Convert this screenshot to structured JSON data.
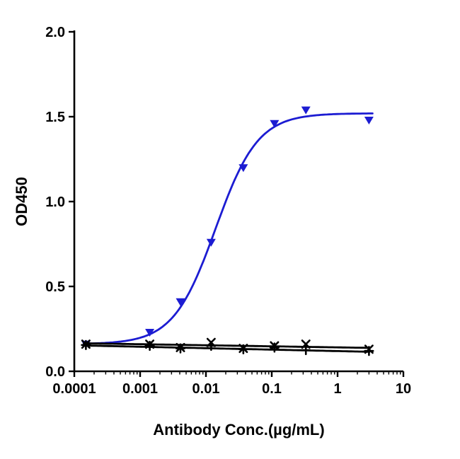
{
  "figure": {
    "background": "#ffffff"
  },
  "chart_data": {
    "type": "line",
    "title": "",
    "xlabel": "Antibody Conc.(µg/mL)",
    "ylabel": "OD450",
    "x_scale": "log",
    "xlim": [
      0.0001,
      10
    ],
    "ylim": [
      0,
      2
    ],
    "grid": false,
    "legend": "none",
    "x_ticks": {
      "values": [
        0.0001,
        0.001,
        0.01,
        0.1,
        1,
        10
      ],
      "labels": [
        "0.0001",
        "0.001",
        "0.01",
        "0.1",
        "1",
        "10"
      ]
    },
    "y_ticks": {
      "values": [
        0,
        0.5,
        1,
        1.5,
        2
      ],
      "labels": [
        "0.0",
        "0.5",
        "1.0",
        "1.5",
        "2.0"
      ]
    },
    "series": [
      {
        "name": "binding-curve",
        "color": "#1c1cd2",
        "marker": "triangle-down",
        "x": [
          0.00015,
          0.0014,
          0.0041,
          0.012,
          0.037,
          0.11,
          0.33,
          3
        ],
        "y": [
          0.16,
          0.23,
          0.41,
          0.76,
          1.2,
          1.46,
          1.54,
          1.48
        ],
        "fit": {
          "type": "4pl",
          "bottom": 0.16,
          "top": 1.52,
          "ec50": 0.014,
          "hill": 1.35,
          "domain": [
            0.00014,
            3.4
          ]
        }
      },
      {
        "name": "control-1",
        "color": "#000000",
        "marker": "x",
        "x": [
          0.00015,
          0.0014,
          0.0041,
          0.012,
          0.037,
          0.11,
          0.33,
          3
        ],
        "y": [
          0.16,
          0.16,
          0.14,
          0.17,
          0.135,
          0.15,
          0.16,
          0.13
        ],
        "fit": {
          "type": "trend",
          "start": 0.165,
          "end": 0.138,
          "domain": [
            0.00014,
            3.05
          ]
        }
      },
      {
        "name": "control-2",
        "color": "#000000",
        "marker": "plus",
        "x": [
          0.00015,
          0.0014,
          0.0041,
          0.012,
          0.037,
          0.11,
          0.33,
          3
        ],
        "y": [
          0.155,
          0.15,
          0.135,
          0.15,
          0.13,
          0.14,
          0.125,
          0.12
        ],
        "fit": {
          "type": "trend",
          "start": 0.152,
          "end": 0.115,
          "domain": [
            0.00014,
            3.05
          ]
        }
      }
    ]
  }
}
